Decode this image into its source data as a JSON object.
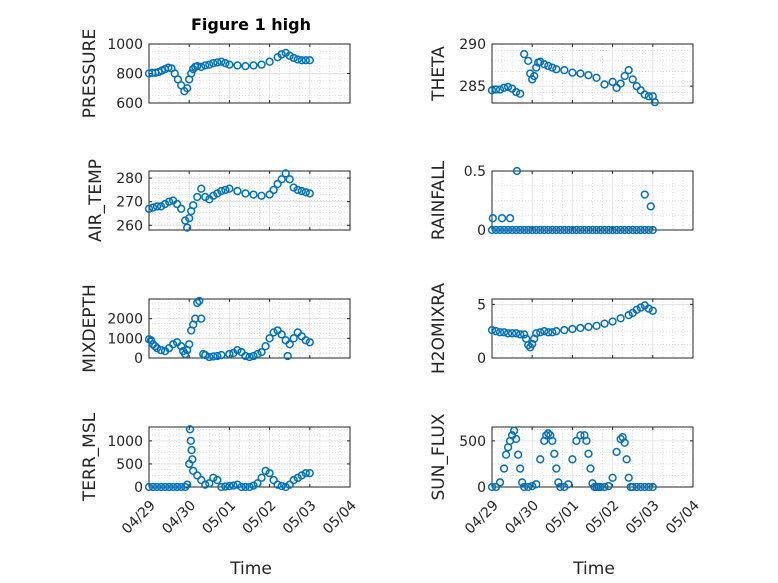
{
  "figure": {
    "title": "Figure 1 high",
    "xlabel": "Time",
    "marker_color": "#0072bd",
    "x_tick_labels": [
      "04/29",
      "04/30",
      "05/01",
      "05/02",
      "05/03",
      "05/04"
    ]
  },
  "chart_data": [
    {
      "id": "pressure",
      "type": "scatter",
      "ylabel": "PRESSURE",
      "ylim": [
        600,
        1000
      ],
      "yticks": [
        600,
        800,
        1000
      ],
      "ytick_labels": [
        "600",
        "800",
        "1000"
      ],
      "xlim": [
        0,
        5
      ],
      "grid": true,
      "marker": "circle",
      "x": [
        0,
        0.08,
        0.16,
        0.24,
        0.32,
        0.4,
        0.48,
        0.56,
        0.64,
        0.72,
        0.8,
        0.88,
        0.95,
        1.0,
        1.05,
        1.1,
        1.15,
        1.2,
        1.3,
        1.4,
        1.5,
        1.6,
        1.7,
        1.8,
        1.9,
        2.0,
        2.2,
        2.4,
        2.6,
        2.8,
        3.0,
        3.2,
        3.3,
        3.4,
        3.5,
        3.6,
        3.7,
        3.8,
        3.9,
        4.0
      ],
      "y": [
        800,
        805,
        805,
        810,
        820,
        830,
        840,
        835,
        800,
        760,
        720,
        680,
        700,
        760,
        800,
        830,
        845,
        850,
        845,
        855,
        860,
        870,
        875,
        880,
        870,
        860,
        855,
        850,
        855,
        860,
        880,
        910,
        930,
        940,
        920,
        905,
        895,
        890,
        890,
        890
      ]
    },
    {
      "id": "theta",
      "type": "scatter",
      "ylabel": "THETA",
      "ylim": [
        283,
        290
      ],
      "yticks": [
        285,
        290
      ],
      "ytick_labels": [
        "285",
        "290"
      ],
      "xlim": [
        0,
        5
      ],
      "grid": true,
      "marker": "circle",
      "x": [
        0,
        0.1,
        0.2,
        0.3,
        0.4,
        0.5,
        0.6,
        0.7,
        0.8,
        0.9,
        0.95,
        1.0,
        1.05,
        1.1,
        1.15,
        1.2,
        1.3,
        1.4,
        1.5,
        1.6,
        1.8,
        2.0,
        2.2,
        2.4,
        2.6,
        2.8,
        3.0,
        3.1,
        3.2,
        3.3,
        3.4,
        3.5,
        3.6,
        3.7,
        3.8,
        3.9,
        4.0,
        4.05
      ],
      "y": [
        284.5,
        284.6,
        284.6,
        284.8,
        284.9,
        284.7,
        284.3,
        284.1,
        288.8,
        288,
        286.5,
        285.8,
        286.2,
        287.2,
        287.8,
        287.9,
        287.6,
        287.4,
        287.2,
        287,
        286.9,
        286.6,
        286.5,
        286.3,
        286,
        285.2,
        285.5,
        284.8,
        285.3,
        286.2,
        286.9,
        285.8,
        285,
        284.5,
        284,
        283.8,
        283.8,
        283.1
      ]
    },
    {
      "id": "air_temp",
      "type": "scatter",
      "ylabel": "AIR_TEMP",
      "ylim": [
        258,
        283
      ],
      "yticks": [
        260,
        270,
        280
      ],
      "ytick_labels": [
        "260",
        "270",
        "280"
      ],
      "xlim": [
        0,
        5
      ],
      "grid": true,
      "marker": "circle",
      "x": [
        0,
        0.1,
        0.2,
        0.3,
        0.4,
        0.5,
        0.6,
        0.7,
        0.8,
        0.9,
        0.95,
        1.0,
        1.05,
        1.1,
        1.2,
        1.3,
        1.4,
        1.5,
        1.6,
        1.7,
        1.8,
        1.9,
        2.0,
        2.2,
        2.4,
        2.6,
        2.8,
        3.0,
        3.1,
        3.2,
        3.3,
        3.4,
        3.5,
        3.6,
        3.7,
        3.8,
        3.9,
        4.0
      ],
      "y": [
        267,
        267.5,
        268,
        268,
        269,
        270,
        270.5,
        269,
        267,
        262,
        259,
        263,
        266,
        268.5,
        272,
        275.5,
        272,
        271,
        272.5,
        273.5,
        274.5,
        275,
        275.5,
        274.5,
        273.5,
        273,
        272.5,
        273,
        275,
        277.5,
        279.5,
        282,
        279.5,
        276,
        275,
        274.5,
        274,
        273.5
      ]
    },
    {
      "id": "rainfall",
      "type": "scatter",
      "ylabel": "RAINFALL",
      "ylim": [
        0,
        0.5
      ],
      "yticks": [
        0,
        0.5
      ],
      "ytick_labels": [
        "0",
        "0.5"
      ],
      "xlim": [
        0,
        5
      ],
      "grid": true,
      "marker": "circle",
      "x": [
        0,
        0.1,
        0.2,
        0.3,
        0.4,
        0.5,
        0.6,
        0.7,
        0.8,
        0.9,
        1.0,
        1.1,
        1.2,
        1.3,
        1.4,
        1.5,
        1.6,
        1.7,
        1.8,
        1.9,
        2.0,
        2.1,
        2.2,
        2.3,
        2.4,
        2.5,
        2.6,
        2.7,
        2.8,
        2.9,
        3.0,
        3.1,
        3.2,
        3.3,
        3.4,
        3.5,
        3.6,
        3.7,
        3.8,
        3.9,
        4.0,
        0.02,
        0.25,
        0.45,
        0.62,
        3.8,
        3.95
      ],
      "y": [
        0,
        0,
        0,
        0,
        0,
        0,
        0,
        0,
        0,
        0,
        0,
        0,
        0,
        0,
        0,
        0,
        0,
        0,
        0,
        0,
        0,
        0,
        0,
        0,
        0,
        0,
        0,
        0,
        0,
        0,
        0,
        0,
        0,
        0,
        0,
        0,
        0,
        0,
        0,
        0,
        0,
        0.1,
        0.1,
        0.1,
        0.5,
        0.3,
        0.2
      ]
    },
    {
      "id": "mixdepth",
      "type": "scatter",
      "ylabel": "MIXDEPTH",
      "ylim": [
        0,
        3000
      ],
      "yticks": [
        0,
        1000,
        2000
      ],
      "ytick_labels": [
        "0",
        "1000",
        "2000"
      ],
      "xlim": [
        0,
        5
      ],
      "grid": true,
      "marker": "circle",
      "x": [
        0,
        0.05,
        0.1,
        0.15,
        0.2,
        0.3,
        0.4,
        0.5,
        0.6,
        0.7,
        0.8,
        0.85,
        0.9,
        0.95,
        1.0,
        1.05,
        1.1,
        1.15,
        1.2,
        1.25,
        1.3,
        1.35,
        1.4,
        1.5,
        1.6,
        1.7,
        1.8,
        2.0,
        2.1,
        2.2,
        2.3,
        2.4,
        2.5,
        2.6,
        2.7,
        2.8,
        2.9,
        3.0,
        3.1,
        3.2,
        3.3,
        3.4,
        3.45,
        3.5,
        3.6,
        3.7,
        3.8,
        3.9,
        4.0
      ],
      "y": [
        950,
        900,
        700,
        600,
        500,
        400,
        350,
        500,
        700,
        800,
        600,
        350,
        200,
        400,
        700,
        1400,
        1700,
        2000,
        2800,
        2900,
        2000,
        200,
        150,
        50,
        80,
        100,
        150,
        200,
        250,
        400,
        300,
        100,
        50,
        100,
        200,
        300,
        600,
        1000,
        1300,
        1400,
        1200,
        900,
        100,
        700,
        1000,
        1300,
        1100,
        900,
        800
      ]
    },
    {
      "id": "h2omixra",
      "type": "scatter",
      "ylabel": "H2OMIXRA",
      "ylim": [
        0,
        5.5
      ],
      "yticks": [
        0,
        5
      ],
      "ytick_labels": [
        "0",
        "5"
      ],
      "xlim": [
        0,
        5
      ],
      "grid": true,
      "marker": "circle",
      "x": [
        0,
        0.1,
        0.2,
        0.3,
        0.4,
        0.5,
        0.6,
        0.7,
        0.8,
        0.85,
        0.9,
        0.95,
        1.0,
        1.05,
        1.1,
        1.2,
        1.3,
        1.4,
        1.5,
        1.6,
        1.8,
        2.0,
        2.2,
        2.4,
        2.6,
        2.8,
        3.0,
        3.2,
        3.4,
        3.5,
        3.6,
        3.7,
        3.8,
        3.9,
        4.0
      ],
      "y": [
        2.6,
        2.5,
        2.4,
        2.4,
        2.3,
        2.3,
        2.3,
        2.2,
        2.2,
        1.8,
        1.2,
        1.0,
        1.3,
        1.8,
        2.3,
        2.4,
        2.5,
        2.4,
        2.4,
        2.5,
        2.6,
        2.7,
        2.8,
        2.9,
        3.0,
        3.2,
        3.4,
        3.7,
        4.0,
        4.2,
        4.5,
        4.7,
        4.9,
        4.6,
        4.4
      ]
    },
    {
      "id": "terr_msl",
      "type": "scatter",
      "ylabel": "TERR_MSL",
      "ylim": [
        0,
        1300
      ],
      "yticks": [
        0,
        500,
        1000
      ],
      "ytick_labels": [
        "0",
        "500",
        "1000"
      ],
      "xlim": [
        0,
        5
      ],
      "grid": true,
      "marker": "circle",
      "x": [
        0,
        0.1,
        0.2,
        0.3,
        0.4,
        0.5,
        0.6,
        0.7,
        0.8,
        0.9,
        0.95,
        1.0,
        1.02,
        1.04,
        1.06,
        1.08,
        1.1,
        1.2,
        1.3,
        1.4,
        1.5,
        1.6,
        1.7,
        1.8,
        1.9,
        2.0,
        2.1,
        2.2,
        2.3,
        2.4,
        2.5,
        2.6,
        2.7,
        2.8,
        2.9,
        3.0,
        3.1,
        3.2,
        3.3,
        3.4,
        3.5,
        3.6,
        3.7,
        3.8,
        3.9,
        4.0
      ],
      "y": [
        0,
        0,
        0,
        0,
        0,
        0,
        0,
        0,
        0,
        0,
        50,
        500,
        1250,
        1000,
        800,
        600,
        350,
        250,
        150,
        50,
        80,
        200,
        150,
        0,
        10,
        20,
        30,
        50,
        0,
        0,
        0,
        30,
        80,
        200,
        350,
        300,
        150,
        50,
        20,
        0,
        50,
        150,
        200,
        250,
        300,
        300
      ]
    },
    {
      "id": "sun_flux",
      "type": "scatter",
      "ylabel": "SUN_FLUX",
      "ylim": [
        0,
        650
      ],
      "yticks": [
        0,
        500
      ],
      "ytick_labels": [
        "0",
        "500"
      ],
      "xlim": [
        0,
        5
      ],
      "grid": true,
      "marker": "circle",
      "x": [
        0,
        0.1,
        0.2,
        0.3,
        0.35,
        0.4,
        0.45,
        0.5,
        0.55,
        0.6,
        0.65,
        0.7,
        0.75,
        0.8,
        0.9,
        1.0,
        1.1,
        1.2,
        1.3,
        1.35,
        1.4,
        1.45,
        1.5,
        1.55,
        1.6,
        1.65,
        1.7,
        1.8,
        1.9,
        2.0,
        2.1,
        2.2,
        2.3,
        2.35,
        2.4,
        2.45,
        2.5,
        2.55,
        2.6,
        2.65,
        2.7,
        2.8,
        2.9,
        3.0,
        3.1,
        3.2,
        3.25,
        3.3,
        3.35,
        3.4,
        3.45,
        3.5,
        3.6,
        3.7,
        3.8,
        3.9,
        4.0
      ],
      "y": [
        0,
        0,
        50,
        200,
        350,
        430,
        500,
        560,
        610,
        520,
        350,
        200,
        50,
        0,
        0,
        10,
        30,
        300,
        500,
        560,
        580,
        560,
        500,
        360,
        200,
        50,
        0,
        0,
        30,
        300,
        500,
        560,
        560,
        500,
        360,
        200,
        40,
        0,
        0,
        0,
        0,
        0,
        10,
        100,
        380,
        520,
        540,
        480,
        300,
        100,
        0,
        0,
        0,
        0,
        0,
        0,
        0
      ]
    }
  ]
}
